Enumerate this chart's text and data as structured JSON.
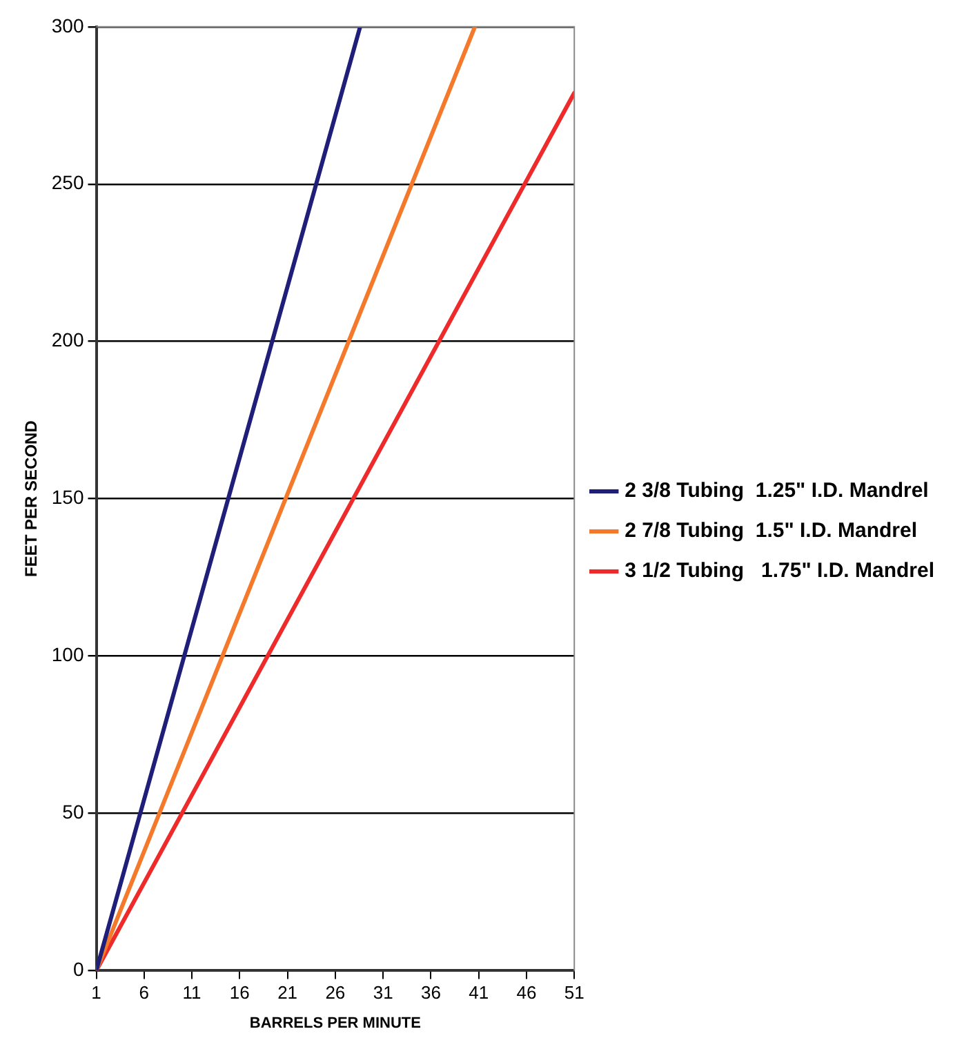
{
  "chart_data": {
    "type": "line",
    "xlabel": "BARRELS PER MINUTE",
    "ylabel": "FEET PER SECOND",
    "xlim": [
      1,
      51
    ],
    "xticks": [
      1,
      6,
      11,
      16,
      21,
      26,
      31,
      36,
      41,
      46,
      51
    ],
    "ylim": [
      0,
      300
    ],
    "yticks": [
      0,
      50,
      100,
      150,
      200,
      250,
      300
    ],
    "grid": "y",
    "legend": "right",
    "marker": "none",
    "line_style": "solid",
    "series": [
      {
        "name": "2 3/8 Tubing  1.25\" I.D. Mandrel",
        "color": "#1f1f7a",
        "x": [
          1,
          28.6
        ],
        "values": [
          0,
          300
        ]
      },
      {
        "name": "2 7/8 Tubing  1.5\" I.D. Mandrel",
        "color": "#f4792b",
        "x": [
          1,
          40.6
        ],
        "values": [
          0,
          300
        ]
      },
      {
        "name": "3 1/2 Tubing   1.75\" I.D. Mandrel",
        "color": "#ee2a2a",
        "x": [
          1,
          51
        ],
        "values": [
          0,
          279
        ]
      }
    ]
  }
}
